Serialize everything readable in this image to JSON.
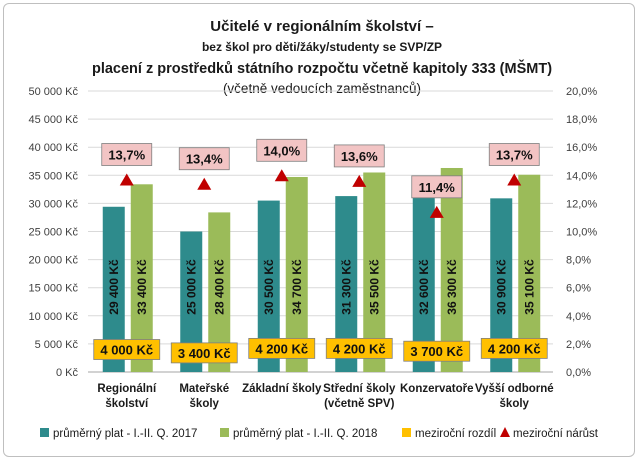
{
  "chart_data": {
    "type": "bar",
    "title_lines": [
      "Učitelé v regionálním školství –",
      "bez škol pro děti/žáky/studenty se SVP/ZP",
      "placení z prostředků státního rozpočtu včetně kapitoly 333 (MŠMT)",
      "(včetně vedoucích zaměstnanců)"
    ],
    "categories": [
      [
        "Regionální",
        "školství"
      ],
      [
        "Mateřské",
        "školy"
      ],
      [
        "Základní školy"
      ],
      [
        "Střední školy",
        "(včetně SPV)"
      ],
      [
        "Konzervatoře"
      ],
      [
        "Vyšší odborné",
        "školy"
      ]
    ],
    "series": [
      {
        "name": "průměrný plat - I.-II. Q. 2017",
        "color": "#2e8b8c",
        "values": [
          29400,
          25000,
          30500,
          31300,
          32600,
          30900
        ],
        "labels": [
          "29 400 Kč",
          "25 000 Kč",
          "30 500 Kč",
          "31 300 Kč",
          "32 600 Kč",
          "30 900 Kč"
        ]
      },
      {
        "name": "průměrný plat - I.-II. Q. 2018",
        "color": "#9bbb59",
        "values": [
          33400,
          28400,
          34700,
          35500,
          36300,
          35100
        ],
        "labels": [
          "33 400 Kč",
          "28 400 Kč",
          "34 700 Kč",
          "35 500 Kč",
          "36 300 Kč",
          "35 100 Kč"
        ]
      },
      {
        "name": "meziroční rozdíl",
        "color": "#ffc000",
        "values": [
          4000,
          3400,
          4200,
          4200,
          3700,
          4200
        ],
        "labels": [
          "4 000 Kč",
          "3 400 Kč",
          "4 200 Kč",
          "4 200 Kč",
          "3 700 Kč",
          "4 200 Kč"
        ]
      },
      {
        "name": "meziroční nárůst",
        "color": "#c00000",
        "axis": "right",
        "values": [
          13.7,
          13.4,
          14.0,
          13.6,
          11.4,
          13.7
        ],
        "labels": [
          "13,7%",
          "13,4%",
          "14,0%",
          "13,6%",
          "11,4%",
          "13,7%"
        ]
      }
    ],
    "left_axis": {
      "ylim": [
        0,
        50000
      ],
      "ticks": [
        "0 Kč",
        "5 000 Kč",
        "10 000 Kč",
        "15 000 Kč",
        "20 000 Kč",
        "25 000 Kč",
        "30 000 Kč",
        "35 000 Kč",
        "40 000 Kč",
        "45 000 Kč",
        "50 000 Kč"
      ]
    },
    "right_axis": {
      "ylim": [
        0,
        20
      ],
      "ticks": [
        "0,0%",
        "2,0%",
        "4,0%",
        "6,0%",
        "8,0%",
        "10,0%",
        "12,0%",
        "14,0%",
        "16,0%",
        "18,0%",
        "20,0%"
      ]
    },
    "grid": true,
    "legend_position": "bottom",
    "colors": {
      "pct_label_bg": "#f2c4c4",
      "diff_label_bg": "#ffc000"
    }
  }
}
